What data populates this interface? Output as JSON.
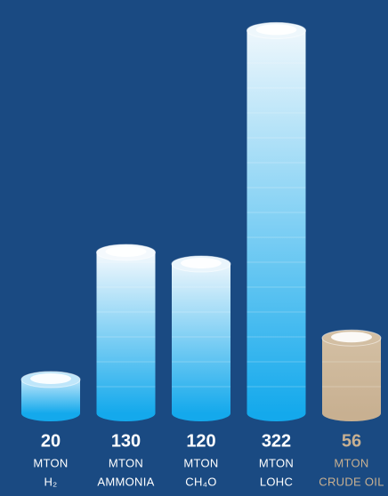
{
  "chart_data": {
    "type": "bar",
    "categories": [
      "H₂",
      "AMMONIA",
      "CH₄O",
      "LOHC",
      "CRUDE OIL"
    ],
    "values": [
      20,
      130,
      120,
      322,
      56
    ],
    "unit": "MTON",
    "colors": [
      [
        "#14a9ec",
        "#bfe6fa"
      ],
      [
        "#14a9ec",
        "#f4f9fd"
      ],
      [
        "#14a9ec",
        "#eaf5fc"
      ],
      [
        "#14a9ec",
        "#eef7fc"
      ],
      [
        "#c8b091",
        "#d3bfa3"
      ]
    ],
    "label_colors": [
      "#ffffff",
      "#ffffff",
      "#ffffff",
      "#ffffff",
      "#c8b091"
    ]
  }
}
